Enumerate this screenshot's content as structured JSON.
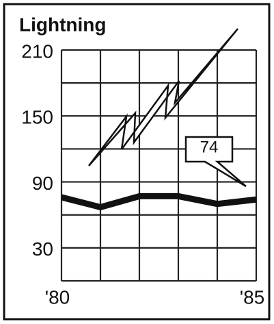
{
  "chart_data": {
    "type": "line",
    "title": "Lightning",
    "x": [
      1980,
      1981,
      1982,
      1983,
      1984,
      1985
    ],
    "values": [
      76,
      67,
      77,
      77,
      70,
      74
    ],
    "color": "#111111",
    "xlim": [
      1980,
      1985
    ],
    "xticks": [
      {
        "value": 1980,
        "label": "'80"
      },
      {
        "value": 1985,
        "label": "'85"
      }
    ],
    "x_minor_ticks": [
      1981,
      1982,
      1983,
      1984
    ],
    "ylim": [
      0,
      210
    ],
    "yticks": [
      30,
      90,
      150,
      210
    ],
    "y_minor_ticks": [
      0,
      60,
      120,
      180
    ],
    "grid": true,
    "annotation": "74"
  }
}
